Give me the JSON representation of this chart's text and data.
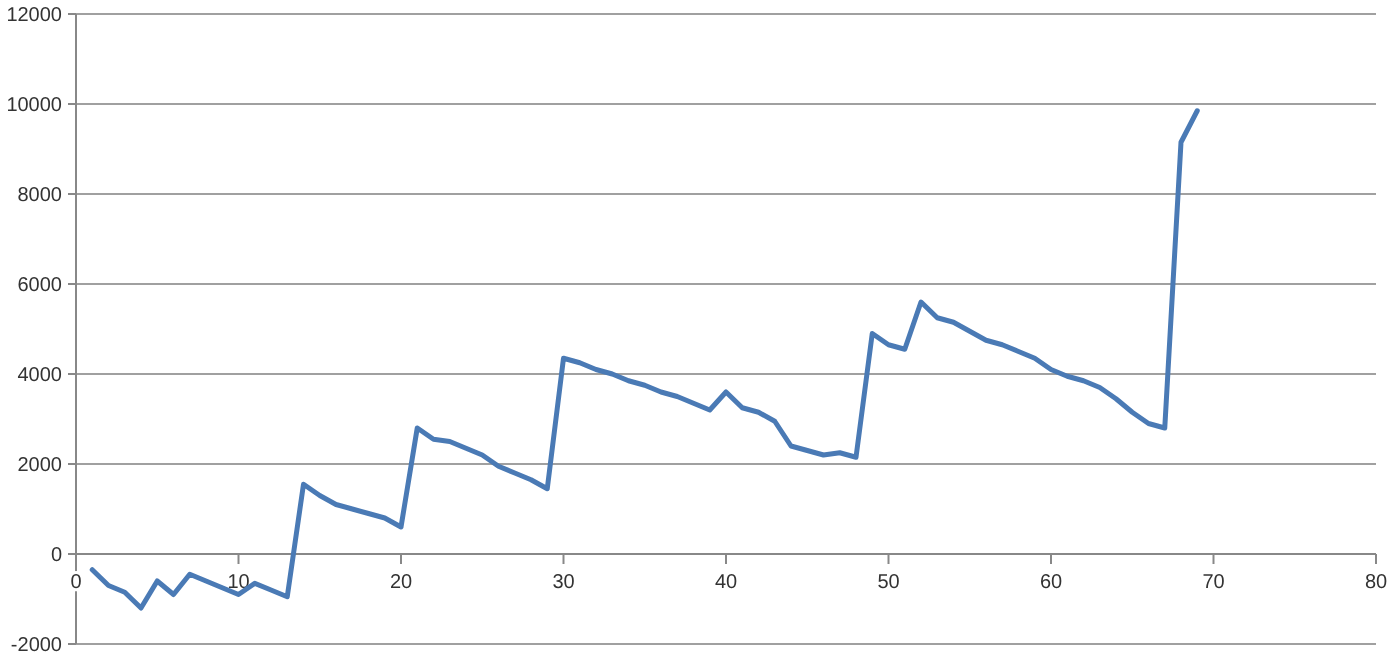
{
  "chart_data": {
    "type": "line",
    "x": [
      1,
      2,
      3,
      4,
      5,
      6,
      7,
      8,
      9,
      10,
      11,
      12,
      13,
      14,
      15,
      16,
      17,
      18,
      19,
      20,
      21,
      22,
      23,
      24,
      25,
      26,
      27,
      28,
      29,
      30,
      31,
      32,
      33,
      34,
      35,
      36,
      37,
      38,
      39,
      40,
      41,
      42,
      43,
      44,
      45,
      46,
      47,
      48,
      49,
      50,
      51,
      52,
      53,
      54,
      55,
      56,
      57,
      58,
      59,
      60,
      61,
      62,
      63,
      64,
      65,
      66,
      67,
      68,
      69
    ],
    "series": [
      {
        "color": "#4a7ab5",
        "values": [
          -350,
          -700,
          -850,
          -1200,
          -600,
          -900,
          -450,
          -600,
          -750,
          -900,
          -650,
          -800,
          -950,
          1550,
          1300,
          1100,
          1000,
          900,
          800,
          600,
          2800,
          2550,
          2500,
          2350,
          2200,
          1950,
          1800,
          1650,
          1450,
          4350,
          4250,
          4100,
          4000,
          3850,
          3750,
          3600,
          3500,
          3350,
          3200,
          3600,
          3250,
          3150,
          2950,
          2400,
          2300,
          2200,
          2250,
          2150,
          4900,
          4650,
          4550,
          5600,
          5250,
          5150,
          4950,
          4750,
          4650,
          4500,
          4350,
          4100,
          3950,
          3850,
          3700,
          3450,
          3150,
          2900,
          2800,
          9150,
          9850
        ]
      }
    ],
    "xlim": [
      0,
      80
    ],
    "xticks": [
      0,
      10,
      20,
      30,
      40,
      50,
      60,
      70,
      80
    ],
    "ylim": [
      -2000,
      12000
    ],
    "yticks": [
      -2000,
      0,
      2000,
      4000,
      6000,
      8000,
      10000,
      12000
    ],
    "grid": "y",
    "marker": "none",
    "line_style": "solid"
  }
}
